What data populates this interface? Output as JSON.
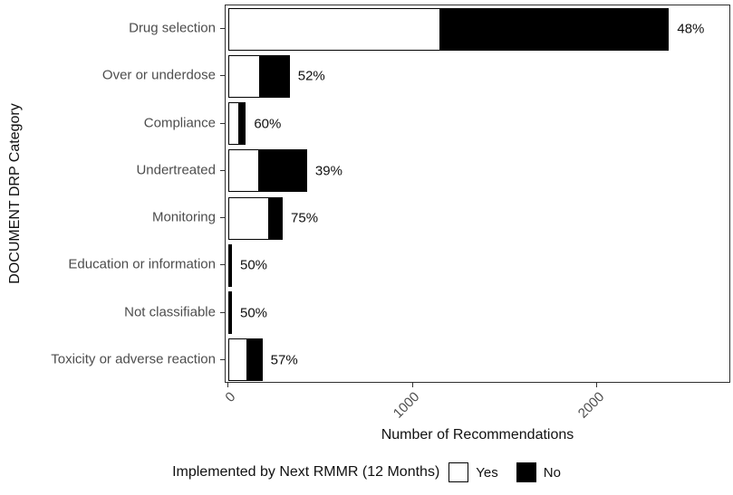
{
  "chart_data": {
    "type": "bar",
    "orientation": "horizontal",
    "stacked": true,
    "title": "",
    "xlabel": "Number of Recommendations",
    "ylabel": "DOCUMENT DRP Category",
    "xlim": [
      0,
      2500
    ],
    "x_ticks": [
      0,
      1000,
      2000
    ],
    "grid": false,
    "categories": [
      "Drug selection",
      "Over or underdose",
      "Compliance",
      "Undertreated",
      "Monitoring",
      "Education or information",
      "Not classifiable",
      "Toxicity or adverse reaction"
    ],
    "series": [
      {
        "name": "Yes",
        "color": "#ffffff",
        "values": [
          1150,
          173,
          57,
          167,
          221,
          8,
          7,
          105
        ]
      },
      {
        "name": "No",
        "color": "#000000",
        "values": [
          1240,
          160,
          38,
          260,
          74,
          8,
          7,
          80
        ]
      }
    ],
    "bar_labels": [
      "48%",
      "52%",
      "60%",
      "39%",
      "75%",
      "50%",
      "50%",
      "57%"
    ],
    "legend": {
      "title": "Implemented by Next RMMR (12 Months)",
      "position": "bottom",
      "entries": [
        {
          "label": "Yes",
          "color": "#ffffff"
        },
        {
          "label": "No",
          "color": "#000000"
        }
      ]
    }
  }
}
